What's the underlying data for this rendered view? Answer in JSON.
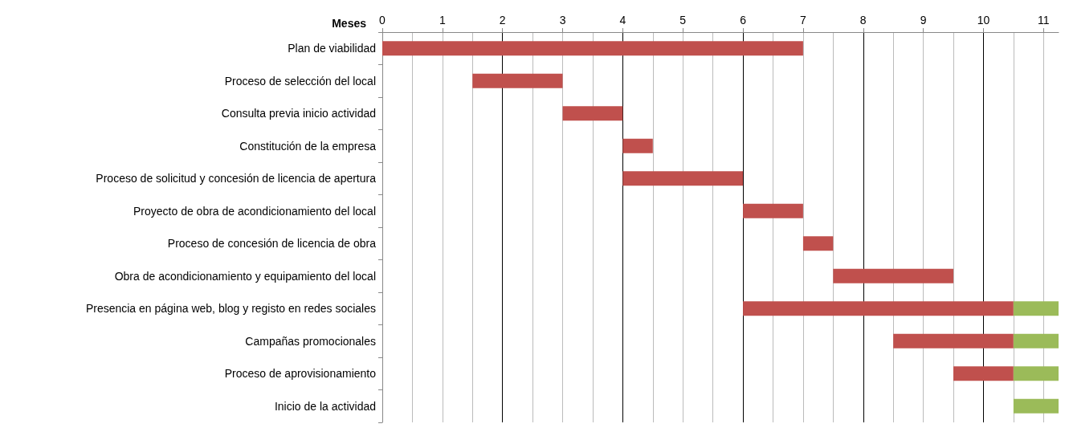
{
  "chart_data": {
    "type": "bar",
    "orientation": "horizontal",
    "xlabel": "Meses",
    "categories": [
      "Plan de viabilidad",
      "Proceso de selección del local",
      "Consulta previa inicio actividad",
      "Constitución de la empresa",
      "Proceso de solicitud y concesión de licencia de apertura",
      "Proyecto de obra de acondicionamiento del local",
      "Proceso de concesión de licencia de obra",
      "Obra de acondicionamiento y equipamiento del local",
      "Presencia en página web, blog y registo en redes sociales",
      "Campañas promocionales",
      "Proceso de aprovisionamiento",
      "Inicio de la actividad"
    ],
    "series": [
      {
        "color": "#c0504d",
        "base": [
          0,
          1.5,
          3,
          4,
          4,
          6,
          7,
          7.5,
          6,
          8.5,
          9.5,
          null
        ],
        "values": [
          7,
          1.5,
          1,
          0.5,
          2,
          1,
          0.5,
          2,
          4.5,
          2,
          1,
          null
        ]
      },
      {
        "color": "#9bbb59",
        "base": [
          null,
          null,
          null,
          null,
          null,
          null,
          null,
          null,
          10.5,
          10.5,
          10.5,
          10.5
        ],
        "values": [
          null,
          null,
          null,
          null,
          null,
          null,
          null,
          null,
          0.75,
          0.75,
          0.75,
          0.75
        ]
      }
    ],
    "xlim": [
      0,
      11.25
    ],
    "xticks": [
      0,
      1,
      2,
      3,
      4,
      5,
      6,
      7,
      8,
      9,
      10,
      11
    ],
    "grid": "x"
  }
}
